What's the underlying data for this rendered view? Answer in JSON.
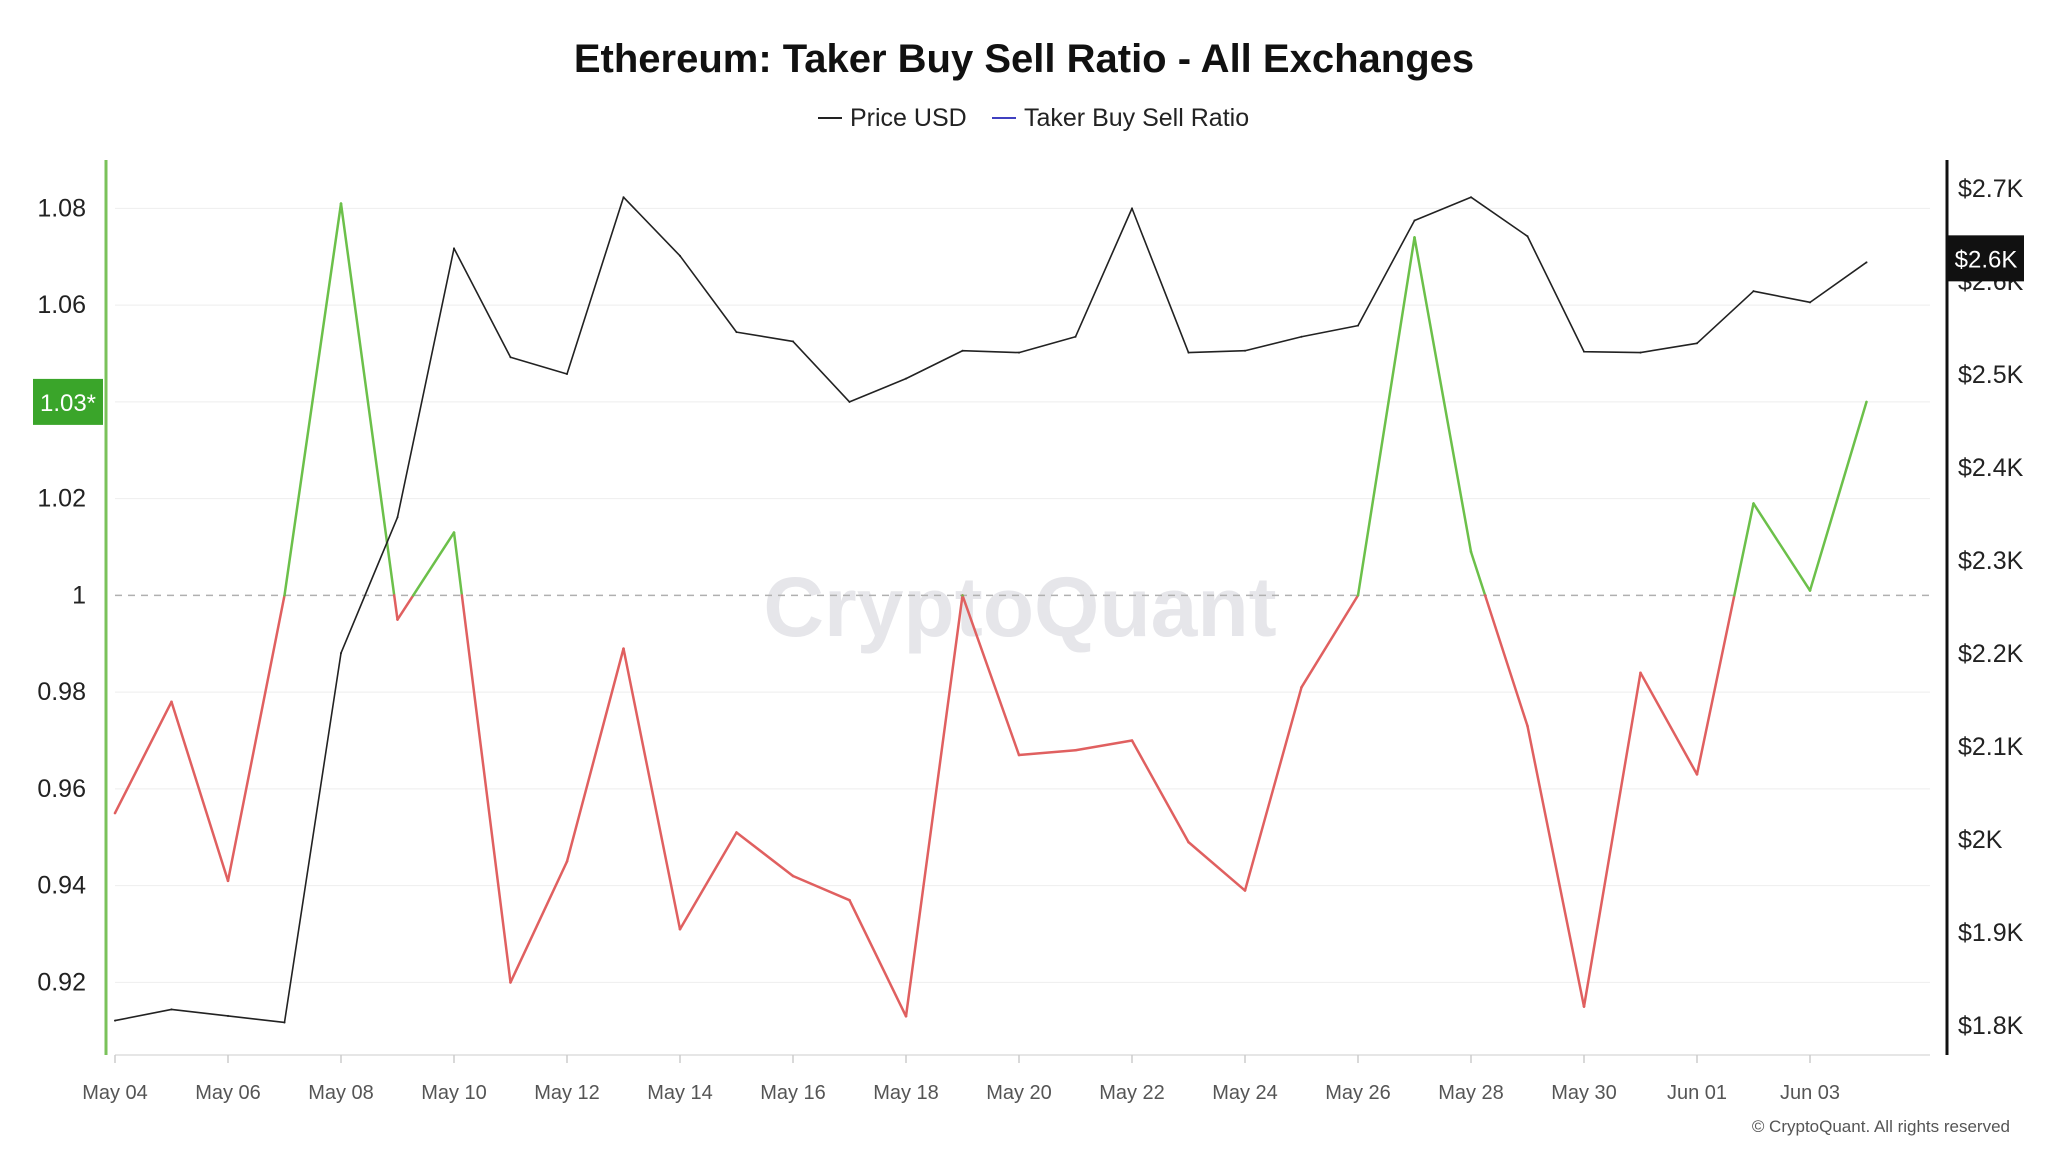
{
  "chart_data": {
    "type": "line",
    "title": "Ethereum: Taker Buy Sell Ratio - All Exchanges",
    "legend": [
      "Price USD",
      "Taker Buy Sell Ratio"
    ],
    "legend_placement": "top-center",
    "x": [
      "May 04",
      "May 05",
      "May 06",
      "May 07",
      "May 08",
      "May 09",
      "May 10",
      "May 11",
      "May 12",
      "May 13",
      "May 14",
      "May 15",
      "May 16",
      "May 17",
      "May 18",
      "May 19",
      "May 20",
      "May 21",
      "May 22",
      "May 23",
      "May 24",
      "May 25",
      "May 26",
      "May 27",
      "May 28",
      "May 29",
      "May 30",
      "May 31",
      "Jun 01",
      "Jun 02",
      "Jun 03",
      "Jun 04"
    ],
    "x_tick_labels": [
      "May 04",
      "May 06",
      "May 08",
      "May 10",
      "May 12",
      "May 14",
      "May 16",
      "May 18",
      "May 20",
      "May 22",
      "May 24",
      "May 26",
      "May 28",
      "May 30",
      "Jun 01",
      "Jun 03"
    ],
    "series": [
      {
        "name": "Taker Buy Sell Ratio",
        "axis": "left",
        "threshold": 1,
        "color_above": "#6cc04a",
        "color_below": "#e06060",
        "values": [
          0.955,
          0.978,
          0.941,
          1.0,
          1.081,
          0.995,
          1.013,
          0.92,
          0.945,
          0.989,
          0.931,
          0.951,
          0.942,
          0.937,
          0.913,
          1.0,
          0.967,
          0.968,
          0.97,
          0.949,
          0.939,
          0.981,
          1.0,
          1.074,
          1.009,
          0.973,
          0.915,
          0.984,
          0.963,
          1.019,
          1.001,
          1.04
        ]
      },
      {
        "name": "Price USD",
        "axis": "right",
        "color": "#222222",
        "values": [
          1805,
          1817,
          1810,
          1803,
          2200,
          2346,
          2635,
          2518,
          2500,
          2690,
          2627,
          2545,
          2535,
          2470,
          2495,
          2525,
          2523,
          2540,
          2678,
          2523,
          2525,
          2540,
          2552,
          2665,
          2690,
          2648,
          2524,
          2523,
          2533,
          2589,
          2577,
          2620
        ]
      }
    ],
    "y_left": {
      "range": [
        0.905,
        1.09
      ],
      "ticks": [
        0.92,
        0.94,
        0.96,
        0.98,
        1,
        1.02,
        1.06,
        1.08
      ],
      "tick_labels": [
        "0.92",
        "0.94",
        "0.96",
        "0.98",
        "1",
        "1.02",
        "1.06",
        "1.08"
      ],
      "current_label": "1.03*"
    },
    "y_right": {
      "range": [
        1768,
        2730
      ],
      "ticks": [
        1800,
        1900,
        2000,
        2100,
        2200,
        2300,
        2400,
        2500,
        2600,
        2700
      ],
      "tick_labels": [
        "$1.8K",
        "$1.9K",
        "$2K",
        "$2.1K",
        "$2.2K",
        "$2.3K",
        "$2.4K",
        "$2.5K",
        "$2.6K",
        "$2.7K"
      ],
      "current_label": "$2.6K"
    },
    "grid": true,
    "watermark": "CryptoQuant",
    "copyright": "© CryptoQuant. All rights reserved"
  },
  "colors": {
    "ratio_above": "#6cc04a",
    "ratio_below": "#e06060",
    "price": "#222222",
    "legend_ratio": "#4040c0",
    "left_axis": "#7ac25a",
    "badge_left": "#3aa52a",
    "badge_right": "#111111"
  }
}
